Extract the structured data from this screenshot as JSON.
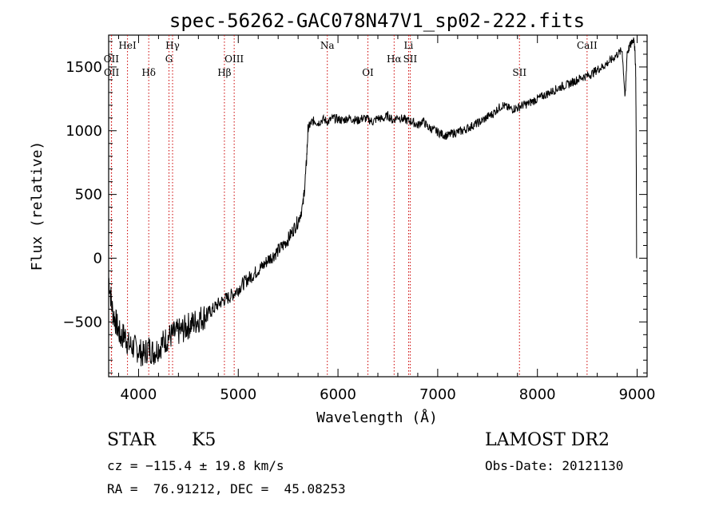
{
  "chart_data": {
    "type": "line",
    "title": "spec-56262-GAC078N47V1_sp02-222.fits",
    "xlabel": "Wavelength (Å)",
    "ylabel": "Flux (relative)",
    "xlim": [
      3700,
      9100
    ],
    "ylim": [
      -930,
      1750
    ],
    "x_ticks": [
      4000,
      5000,
      6000,
      7000,
      8000,
      9000
    ],
    "y_ticks": [
      -500,
      0,
      500,
      1000,
      1500
    ],
    "grid": false,
    "series": [
      {
        "color": "#000000",
        "points": [
          [
            3700,
            -150
          ],
          [
            3740,
            -420
          ],
          [
            3780,
            -520
          ],
          [
            3820,
            -620
          ],
          [
            3860,
            -600
          ],
          [
            3900,
            -680
          ],
          [
            3950,
            -700
          ],
          [
            4000,
            -720
          ],
          [
            4050,
            -760
          ],
          [
            4100,
            -700
          ],
          [
            4150,
            -740
          ],
          [
            4200,
            -700
          ],
          [
            4250,
            -660
          ],
          [
            4300,
            -620
          ],
          [
            4350,
            -600
          ],
          [
            4400,
            -580
          ],
          [
            4450,
            -560
          ],
          [
            4500,
            -530
          ],
          [
            4550,
            -510
          ],
          [
            4600,
            -480
          ],
          [
            4650,
            -460
          ],
          [
            4700,
            -430
          ],
          [
            4750,
            -400
          ],
          [
            4800,
            -360
          ],
          [
            4850,
            -330
          ],
          [
            4900,
            -310
          ],
          [
            4950,
            -280
          ],
          [
            5000,
            -240
          ],
          [
            5050,
            -200
          ],
          [
            5100,
            -160
          ],
          [
            5150,
            -130
          ],
          [
            5200,
            -90
          ],
          [
            5250,
            -60
          ],
          [
            5300,
            -10
          ],
          [
            5350,
            20
          ],
          [
            5400,
            60
          ],
          [
            5450,
            100
          ],
          [
            5500,
            150
          ],
          [
            5550,
            220
          ],
          [
            5600,
            290
          ],
          [
            5650,
            420
          ],
          [
            5680,
            700
          ],
          [
            5700,
            1020
          ],
          [
            5730,
            1060
          ],
          [
            5760,
            1080
          ],
          [
            5800,
            1060
          ],
          [
            5850,
            1090
          ],
          [
            5900,
            1070
          ],
          [
            5950,
            1100
          ],
          [
            6000,
            1090
          ],
          [
            6050,
            1080
          ],
          [
            6100,
            1100
          ],
          [
            6150,
            1090
          ],
          [
            6200,
            1080
          ],
          [
            6250,
            1100
          ],
          [
            6300,
            1090
          ],
          [
            6350,
            1070
          ],
          [
            6400,
            1100
          ],
          [
            6450,
            1090
          ],
          [
            6500,
            1120
          ],
          [
            6550,
            1080
          ],
          [
            6600,
            1110
          ],
          [
            6650,
            1090
          ],
          [
            6700,
            1080
          ],
          [
            6750,
            1070
          ],
          [
            6800,
            1040
          ],
          [
            6850,
            1080
          ],
          [
            6900,
            1030
          ],
          [
            6950,
            1010
          ],
          [
            7000,
            990
          ],
          [
            7050,
            970
          ],
          [
            7100,
            960
          ],
          [
            7150,
            980
          ],
          [
            7200,
            990
          ],
          [
            7250,
            1000
          ],
          [
            7300,
            1020
          ],
          [
            7350,
            1040
          ],
          [
            7400,
            1060
          ],
          [
            7450,
            1080
          ],
          [
            7500,
            1110
          ],
          [
            7550,
            1130
          ],
          [
            7600,
            1170
          ],
          [
            7650,
            1200
          ],
          [
            7700,
            1180
          ],
          [
            7750,
            1170
          ],
          [
            7800,
            1180
          ],
          [
            7850,
            1200
          ],
          [
            7900,
            1210
          ],
          [
            7950,
            1230
          ],
          [
            8000,
            1250
          ],
          [
            8050,
            1270
          ],
          [
            8100,
            1290
          ],
          [
            8150,
            1310
          ],
          [
            8200,
            1330
          ],
          [
            8250,
            1350
          ],
          [
            8300,
            1360
          ],
          [
            8350,
            1380
          ],
          [
            8400,
            1400
          ],
          [
            8450,
            1420
          ],
          [
            8500,
            1430
          ],
          [
            8550,
            1450
          ],
          [
            8600,
            1480
          ],
          [
            8650,
            1500
          ],
          [
            8700,
            1530
          ],
          [
            8750,
            1560
          ],
          [
            8800,
            1600
          ],
          [
            8850,
            1630
          ],
          [
            8880,
            1250
          ],
          [
            8900,
            1620
          ],
          [
            8940,
            1680
          ],
          [
            8970,
            1730
          ],
          [
            8985,
            1500
          ],
          [
            8990,
            1000
          ],
          [
            8995,
            0
          ]
        ]
      }
    ],
    "spectral_lines": [
      {
        "label": "OII",
        "wavelength": 3727,
        "row": 2
      },
      {
        "label": "OII",
        "wavelength": 3729,
        "row": 3
      },
      {
        "label": "HeI",
        "wavelength": 3889,
        "row": 1
      },
      {
        "label": "Hδ",
        "wavelength": 4102,
        "row": 3
      },
      {
        "label": "Hγ",
        "wavelength": 4341,
        "row": 1
      },
      {
        "label": "G",
        "wavelength": 4305,
        "row": 2
      },
      {
        "label": "Hβ",
        "wavelength": 4861,
        "row": 3
      },
      {
        "label": "OIII",
        "wavelength": 4959,
        "row": 2
      },
      {
        "label": "Na",
        "wavelength": 5893,
        "row": 1
      },
      {
        "label": "OI",
        "wavelength": 6300,
        "row": 3
      },
      {
        "label": "Hα",
        "wavelength": 6563,
        "row": 2
      },
      {
        "label": "Li",
        "wavelength": 6708,
        "row": 1
      },
      {
        "label": "SII",
        "wavelength": 6724,
        "row": 2
      },
      {
        "label": "SII",
        "wavelength": 7820,
        "row": 3
      },
      {
        "label": "CaII",
        "wavelength": 8498,
        "row": 1
      }
    ],
    "line_marker_color": "#cc0000"
  },
  "info": {
    "class": "STAR",
    "subclass": "K5",
    "survey": "LAMOST DR2",
    "cz": "cz = −115.4 ± 19.8 km/s",
    "obs_date": "Obs-Date: 20121130",
    "coords": "RA =  76.91212, DEC =  45.08253"
  }
}
